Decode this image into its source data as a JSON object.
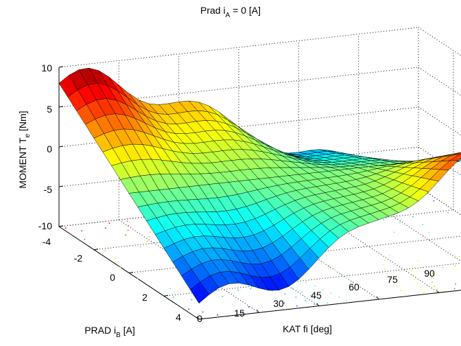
{
  "chart_data": {
    "type": "surface",
    "title": "Prad i",
    "title_sub": "A",
    "title_rest": " = 0  [A]",
    "xlabel": "KAT fi [deg]",
    "ylabel_main": "PRAD i",
    "ylabel_sub": "B",
    "ylabel_rest": " [A]",
    "zlabel_main": "MOMENT T",
    "zlabel_sub": "e",
    "zlabel_rest": " [Nm]",
    "x_ticks": [
      "0",
      "15",
      "30",
      "45",
      "60",
      "75",
      "90"
    ],
    "y_ticks": [
      "-4",
      "-2",
      "0",
      "2",
      "4"
    ],
    "z_ticks": [
      "10",
      "5",
      "0",
      "-5",
      "-10"
    ],
    "xlim": [
      0,
      90
    ],
    "ylim": [
      -4,
      4
    ],
    "zlim": [
      -10,
      10
    ],
    "grid": "dotted",
    "colormap": "jet",
    "contour_projection": "floor"
  }
}
